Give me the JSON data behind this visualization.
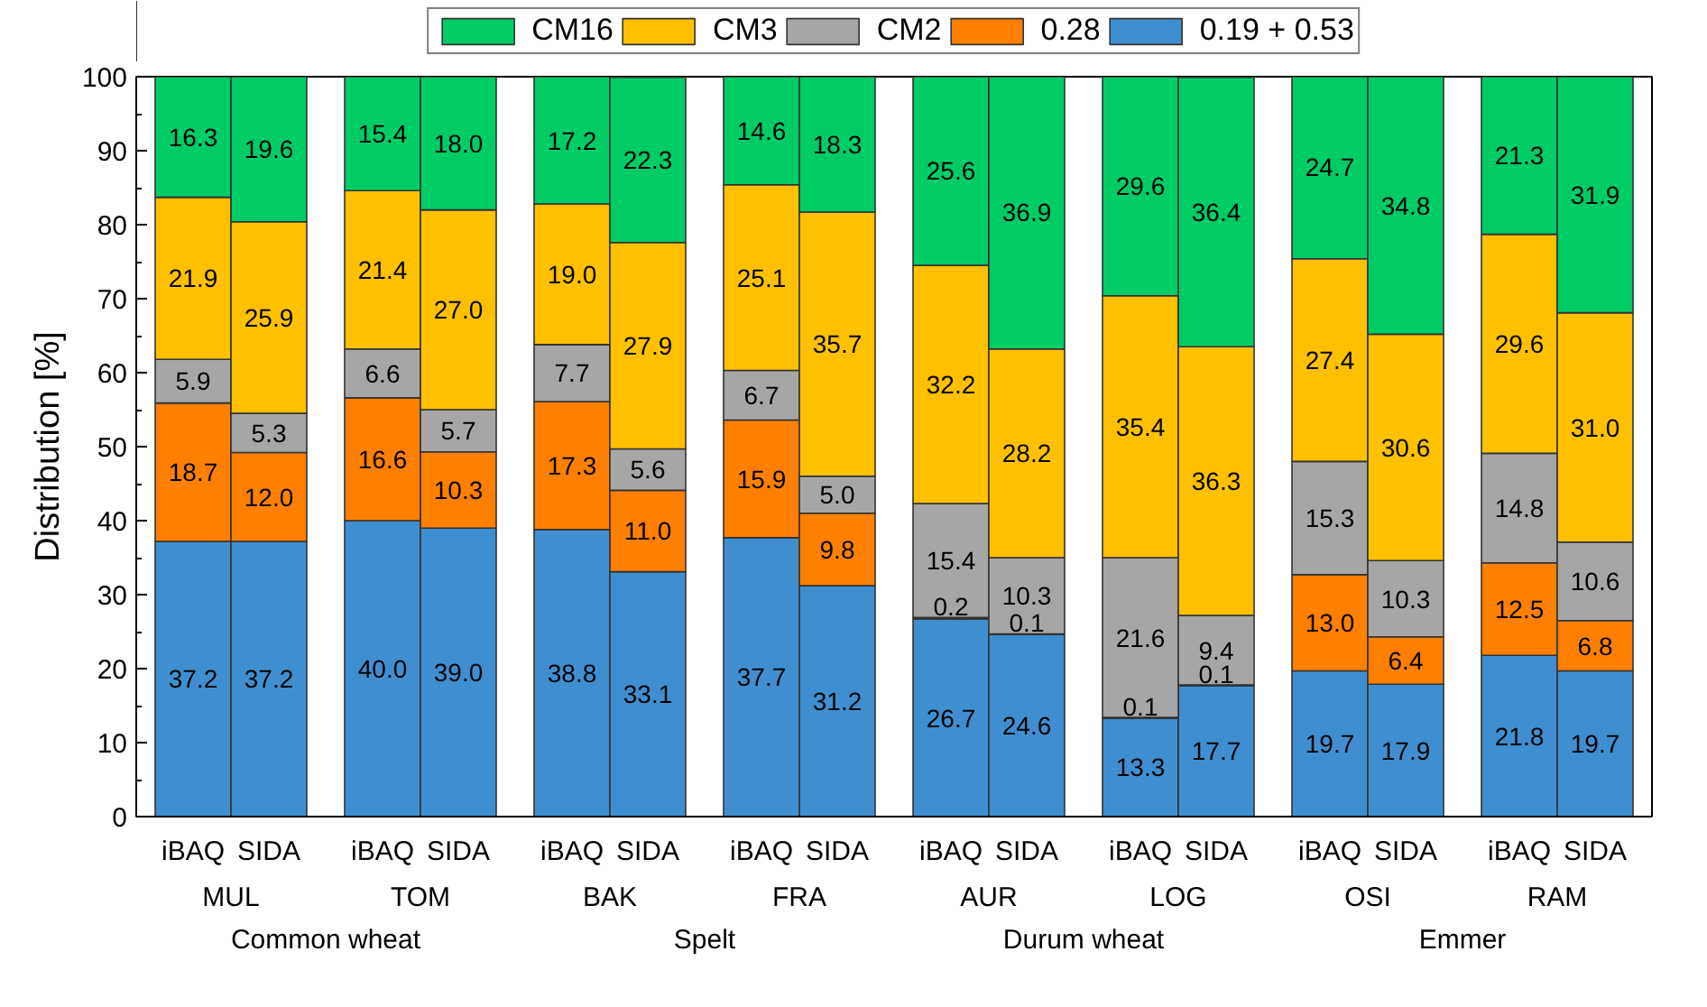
{
  "chart_data": {
    "type": "bar",
    "stacked": true,
    "ylabel": "Distribution [%]",
    "categories": [
      "iBAQ",
      "SIDA",
      "iBAQ",
      "SIDA",
      "iBAQ",
      "SIDA",
      "iBAQ",
      "SIDA",
      "iBAQ",
      "SIDA",
      "iBAQ",
      "SIDA",
      "iBAQ",
      "SIDA",
      "iBAQ",
      "SIDA"
    ],
    "annotations": [
      "MUL",
      "TOM",
      "BAK",
      "FRA",
      "AUR",
      "LOG",
      "OSI",
      "RAM",
      "Common wheat",
      "Spelt",
      "Durum wheat",
      "Emmer"
    ],
    "ylim": [
      0,
      100
    ],
    "yticks": [
      0,
      10,
      20,
      30,
      40,
      50,
      60,
      70,
      80,
      90,
      100
    ],
    "grid": false,
    "legend": "top",
    "series": [
      {
        "name": "0.19 + 0.53",
        "color": "#3f8fd0",
        "values": [
          37.2,
          37.2,
          40.0,
          39.0,
          38.8,
          33.1,
          37.7,
          31.2,
          26.7,
          24.6,
          13.3,
          17.7,
          19.7,
          17.9,
          21.8,
          19.7
        ],
        "value_labels": [
          "37.2",
          "37.2",
          "40.0",
          "39.0",
          "38.8",
          "33.1",
          "37.7",
          "31.2",
          "26.7",
          "24.6",
          "13.3",
          "17.7",
          "19.7",
          "17.9",
          "21.8",
          "19.7"
        ]
      },
      {
        "name": "0.28",
        "color": "#ff7f00",
        "values": [
          18.7,
          12.0,
          16.6,
          10.3,
          17.3,
          11.0,
          15.9,
          9.8,
          0.2,
          0.1,
          0.1,
          0.1,
          13.0,
          6.4,
          12.5,
          6.8
        ],
        "value_labels": [
          "18.7",
          "12.0",
          "16.6",
          "10.3",
          "17.3",
          "11.0",
          "15.9",
          "9.8",
          "0.2",
          "0.1",
          "0.1",
          "0.1",
          "13.0",
          "6.4",
          "12.5",
          "6.8"
        ]
      },
      {
        "name": "CM2",
        "color": "#a6a6a6",
        "values": [
          5.9,
          5.3,
          6.6,
          5.7,
          7.7,
          5.6,
          6.7,
          5.0,
          15.4,
          10.3,
          21.6,
          9.4,
          15.3,
          10.3,
          14.8,
          10.6
        ],
        "value_labels": [
          "5.9",
          "5.3",
          "6.6",
          "5.7",
          "7.7",
          "5.6",
          "6.7",
          "5.0",
          "15.4",
          "10.3",
          "21.6",
          "9.4",
          "15.3",
          "10.3",
          "14.8",
          "10.6"
        ]
      },
      {
        "name": "CM3",
        "color": "#ffc000",
        "values": [
          21.9,
          25.9,
          21.4,
          27.0,
          19.0,
          27.9,
          25.1,
          35.7,
          32.2,
          28.2,
          35.4,
          36.3,
          27.4,
          30.6,
          29.6,
          31.0
        ],
        "value_labels": [
          "21.9",
          "25.9",
          "21.4",
          "27.0",
          "19.0",
          "27.9",
          "25.1",
          "35.7",
          "32.2",
          "28.2",
          "35.4",
          "36.3",
          "27.4",
          "30.6",
          "29.6",
          "31.0"
        ]
      },
      {
        "name": "CM16",
        "color": "#00cc66",
        "values": [
          16.3,
          19.6,
          15.4,
          18.0,
          17.2,
          22.3,
          14.6,
          18.3,
          25.6,
          36.9,
          29.6,
          36.4,
          24.7,
          34.8,
          21.3,
          31.9
        ],
        "value_labels": [
          "16.3",
          "19.6",
          "15.4",
          "18.0",
          "17.2",
          "22.3",
          "14.6",
          "18.3",
          "25.6",
          "36.9",
          "29.6",
          "36.4",
          "24.7",
          "34.8",
          "21.3",
          "31.9"
        ]
      }
    ]
  }
}
